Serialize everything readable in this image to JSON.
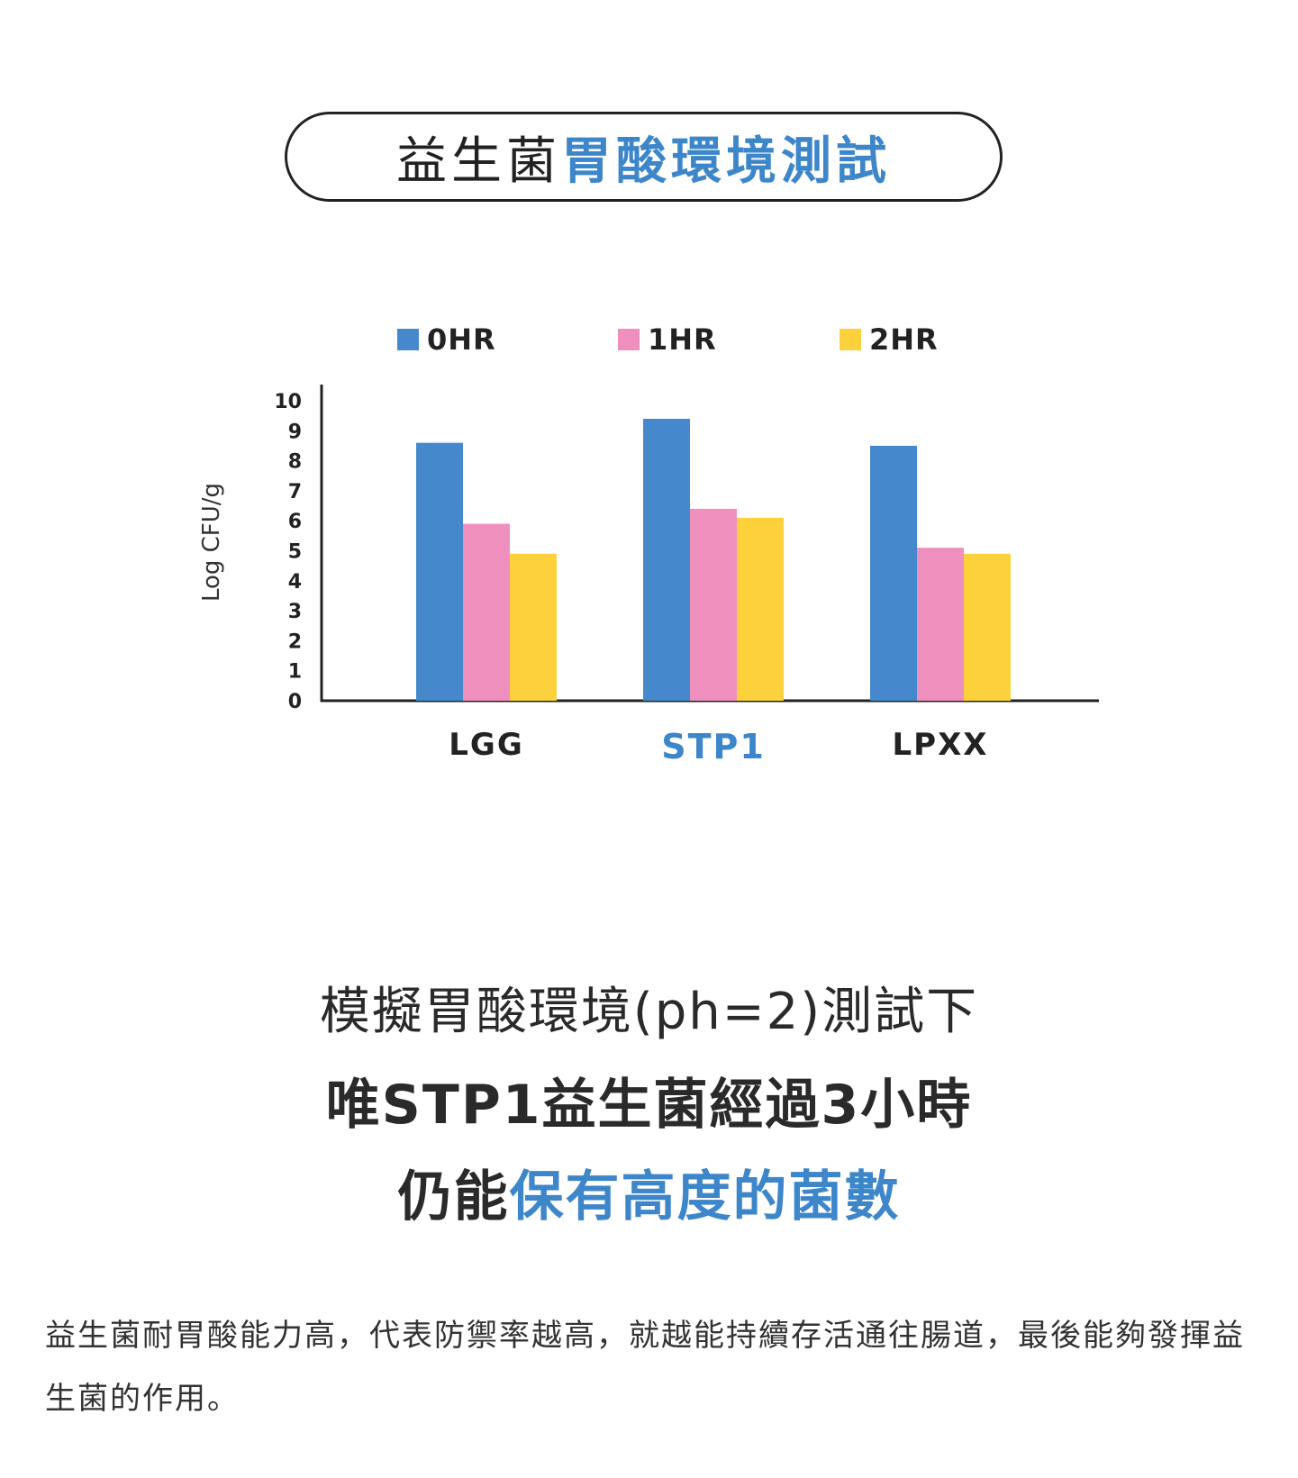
{
  "header": {
    "title_normal": "益生菌",
    "title_highlight": "胃酸環境測試"
  },
  "colors": {
    "accent_blue": "#3c86c9",
    "series_0hr": "#4589cc",
    "series_1hr": "#ef8fbe",
    "series_2hr": "#fdd13c",
    "text_dark": "#222222"
  },
  "chart_data": {
    "type": "bar",
    "ylabel": "Log CFU/g",
    "ylim": [
      0,
      10
    ],
    "yticks": [
      "0",
      "1",
      "2",
      "3",
      "4",
      "5",
      "6",
      "7",
      "8",
      "9",
      "10"
    ],
    "categories": [
      "LGG",
      "STP1",
      "LPXX"
    ],
    "highlight_category": "STP1",
    "legend_position": "top",
    "grid": false,
    "series": [
      {
        "name": "0HR",
        "color": "#4589cc",
        "values": [
          8.6,
          9.4,
          8.5
        ]
      },
      {
        "name": "1HR",
        "color": "#ef8fbe",
        "values": [
          5.9,
          6.4,
          5.1
        ]
      },
      {
        "name": "2HR",
        "color": "#fdd13c",
        "values": [
          4.9,
          6.1,
          4.9
        ]
      }
    ]
  },
  "headline": {
    "line1": "模擬胃酸環境(ph=2)測試下",
    "line2": "唯STP1益生菌經過3小時",
    "line3_normal": "仍能",
    "line3_highlight": "保有高度的菌數"
  },
  "description": "益生菌耐胃酸能力高，代表防禦率越高，就越能持續存活通往腸道，最後能夠發揮益生菌的作用。"
}
